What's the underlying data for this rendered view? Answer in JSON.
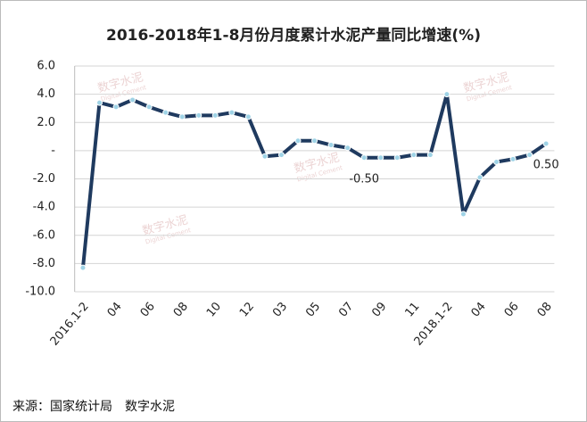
{
  "chart_data": {
    "type": "line",
    "title": "2016-2018年1-8月份月度累计水泥产量同比增速(%)",
    "categories": [
      "2016.1-2",
      null,
      "04",
      null,
      "06",
      null,
      "08",
      null,
      "10",
      null,
      "12",
      null,
      "03",
      null,
      "05",
      null,
      "07",
      null,
      "09",
      null,
      "11",
      null,
      "2018.1-2",
      null,
      "04",
      null,
      "06",
      null,
      "08"
    ],
    "series": [
      {
        "color": "#1f3a5f",
        "marker_color": "#9fd3e6",
        "values": [
          -8.3,
          3.4,
          3.1,
          3.6,
          3.1,
          2.7,
          2.4,
          2.5,
          2.5,
          2.7,
          2.4,
          -0.4,
          -0.3,
          0.7,
          0.7,
          0.4,
          0.2,
          -0.5,
          -0.5,
          -0.5,
          -0.3,
          -0.3,
          4.0,
          -4.5,
          -1.9,
          -0.8,
          -0.6,
          -0.3,
          0.5
        ],
        "value_labels": [
          null,
          null,
          null,
          null,
          null,
          null,
          null,
          null,
          null,
          null,
          null,
          null,
          null,
          null,
          null,
          null,
          null,
          "-0.50",
          null,
          null,
          null,
          null,
          null,
          null,
          null,
          null,
          null,
          null,
          "0.50"
        ]
      }
    ],
    "ylim": [
      -10,
      6
    ],
    "yticks": [
      {
        "value": 6,
        "label": "6.0"
      },
      {
        "value": 4,
        "label": "4.0"
      },
      {
        "value": 2,
        "label": "2.0"
      },
      {
        "value": 0,
        "label": "-"
      },
      {
        "value": -2,
        "label": "-2.0"
      },
      {
        "value": -4,
        "label": "-4.0"
      },
      {
        "value": -6,
        "label": "-6.0"
      },
      {
        "value": -8,
        "label": "-8.0"
      },
      {
        "value": -10,
        "label": "-10.0"
      }
    ],
    "grid": true,
    "source": "来源：国家统计局　数字水泥",
    "watermark": "数字水泥",
    "watermark_sub": "Digital Cement"
  }
}
